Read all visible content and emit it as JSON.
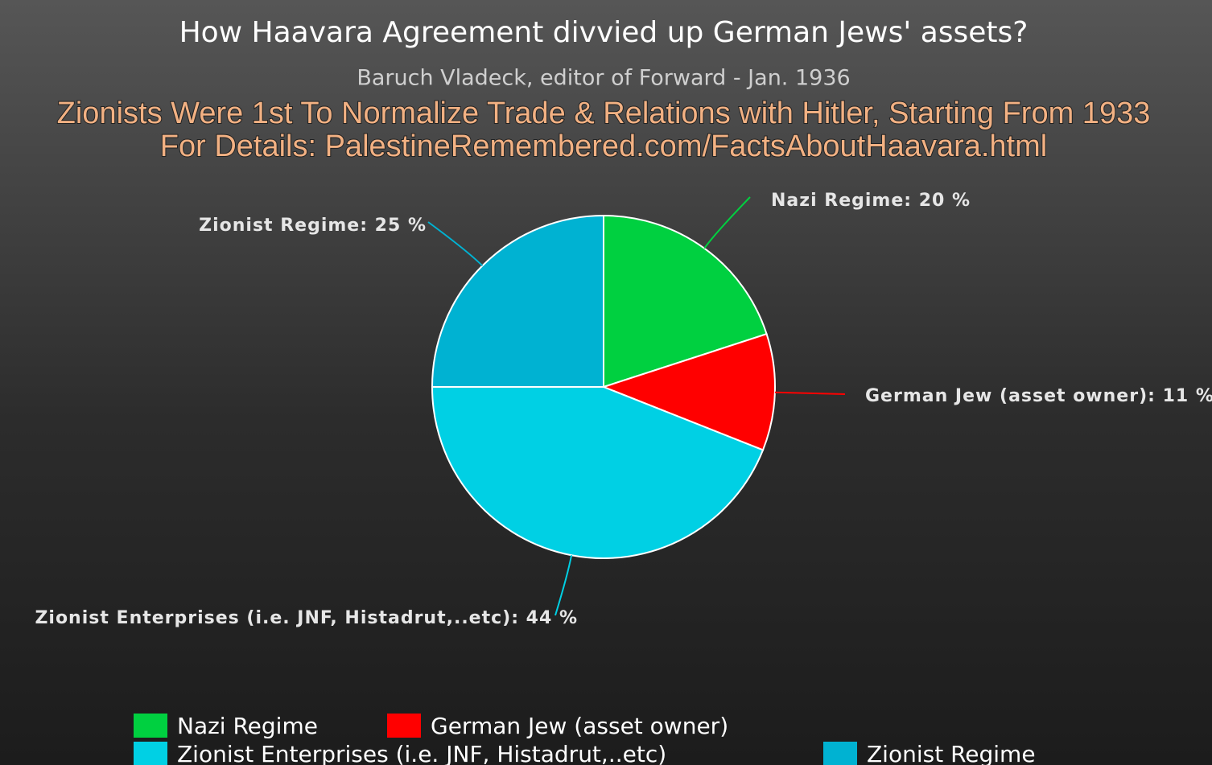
{
  "chart_data": {
    "type": "pie",
    "title": "How Haavara Agreement divvied up German Jews' assets?",
    "subtitle": "Baruch Vladeck, editor of Forward - Jan. 1936",
    "annotations": [
      "Zionists Were 1st To Normalize Trade & Relations with Hitler, Starting From 1933",
      "For Details: PalestineRemembered.com/FactsAboutHaavara.html"
    ],
    "categories": [
      "Nazi Regime",
      "German Jew (asset owner)",
      "Zionist Enterprises (i.e. JNF, Histadrut,..etc)",
      "Zionist Regime"
    ],
    "values": [
      20,
      11,
      44,
      25
    ],
    "value_labels": [
      "Nazi Regime: 20 %",
      "German Jew (asset owner): 11 %",
      "Zionist Enterprises (i.e. JNF, Histadrut,..etc): 44 %",
      "Zionist Regime: 25 %"
    ],
    "colors": [
      "#00d040",
      "#ff0000",
      "#00d0e4",
      "#00b2d2"
    ],
    "legend": "bottom"
  }
}
